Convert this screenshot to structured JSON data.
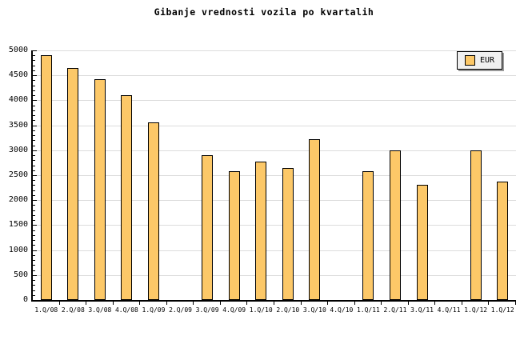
{
  "title": "Gibanje vrednosti vozila po kvartalih",
  "legend": {
    "label": "EUR"
  },
  "colors": {
    "bar_fill": "#fcc868",
    "bar_border": "#000000",
    "gridline": "#dcdcdc",
    "axis": "#000000",
    "legend_bg": "#f0f0f0",
    "legend_shadow": "#999999",
    "text": "#000000"
  },
  "chart_data": {
    "type": "bar",
    "title": "Gibanje vrednosti vozila po kvartalih",
    "categories": [
      "1.Q/08",
      "2.Q/08",
      "3.Q/08",
      "4.Q/08",
      "1.Q/09",
      "2.Q/09",
      "3.Q/09",
      "4.Q/09",
      "1.Q/10",
      "2.Q/10",
      "3.Q/10",
      "4.Q/10",
      "1.Q/11",
      "2.Q/11",
      "3.Q/11",
      "4.Q/11",
      "1.Q/12",
      "1.Q/12"
    ],
    "series": [
      {
        "name": "EUR",
        "values": [
          4900,
          4650,
          4425,
          4100,
          3550,
          null,
          2900,
          2575,
          2775,
          2650,
          3225,
          null,
          2575,
          3000,
          2300,
          null,
          3000,
          2375
        ]
      }
    ],
    "xlabel": "",
    "ylabel": "",
    "ylim": [
      0,
      5000
    ],
    "ytick_step": 500,
    "yminor_step": 100,
    "grid": true,
    "legend_position": "top-right",
    "missing_categories": [
      "2.Q/09",
      "4.Q/10",
      "4.Q/11"
    ]
  }
}
